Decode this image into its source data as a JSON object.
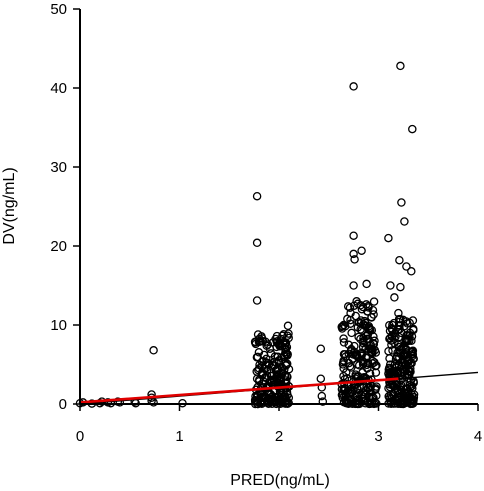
{
  "chart_data": {
    "type": "scatter",
    "title": "",
    "xlabel": "PRED(ng/mL)",
    "ylabel": "DV(ng/mL)",
    "xlim": [
      0,
      4
    ],
    "ylim": [
      0,
      50
    ],
    "x_ticks": [
      "0",
      "1",
      "2",
      "3",
      "4"
    ],
    "y_ticks": [
      "0",
      "10",
      "20",
      "30",
      "40",
      "50"
    ],
    "grid": false,
    "legend": "none",
    "series": [
      {
        "marker": "open-circle",
        "color": "#000000",
        "points": [
          [
            0.0,
            0.1
          ],
          [
            0.03,
            0.2
          ],
          [
            0.12,
            0.05
          ],
          [
            0.2,
            0.1
          ],
          [
            0.22,
            0.3
          ],
          [
            0.28,
            0.2
          ],
          [
            0.31,
            0.1
          ],
          [
            0.38,
            0.3
          ],
          [
            0.4,
            0.2
          ],
          [
            0.55,
            0.3
          ],
          [
            0.56,
            0.1
          ],
          [
            0.72,
            0.4
          ],
          [
            0.72,
            0.8
          ],
          [
            0.72,
            1.2
          ],
          [
            0.74,
            6.8
          ],
          [
            0.74,
            0.2
          ],
          [
            1.03,
            0.1
          ],
          [
            1.78,
            26.3
          ],
          [
            1.78,
            20.4
          ],
          [
            1.78,
            13.1
          ],
          [
            1.76,
            0.5
          ],
          [
            1.77,
            1.8
          ],
          [
            1.78,
            3.2
          ],
          [
            1.8,
            4.5
          ],
          [
            1.82,
            2.0
          ],
          [
            1.79,
            8.8
          ],
          [
            1.83,
            8.3
          ],
          [
            1.85,
            6.2
          ],
          [
            1.87,
            0.8
          ],
          [
            1.88,
            3.6
          ],
          [
            1.9,
            5.0
          ],
          [
            1.92,
            1.2
          ],
          [
            1.94,
            7.8
          ],
          [
            1.96,
            2.5
          ],
          [
            1.97,
            4.2
          ],
          [
            1.98,
            8.6
          ],
          [
            2.0,
            0.6
          ],
          [
            2.02,
            3.0
          ],
          [
            2.05,
            6.0
          ],
          [
            2.07,
            7.0
          ],
          [
            2.08,
            1.5
          ],
          [
            2.09,
            9.9
          ],
          [
            2.1,
            4.4
          ],
          [
            2.1,
            2.2
          ],
          [
            2.42,
            7.0
          ],
          [
            2.42,
            3.2
          ],
          [
            2.43,
            2.1
          ],
          [
            2.43,
            1.0
          ],
          [
            2.44,
            0.3
          ],
          [
            2.75,
            40.2
          ],
          [
            2.75,
            21.3
          ],
          [
            2.75,
            19.0
          ],
          [
            2.76,
            18.3
          ],
          [
            2.83,
            19.4
          ],
          [
            2.88,
            15.2
          ],
          [
            2.75,
            15.0
          ],
          [
            2.78,
            13.0
          ],
          [
            2.65,
            10.0
          ],
          [
            2.65,
            5.5
          ],
          [
            2.63,
            2.5
          ],
          [
            2.67,
            0.5
          ],
          [
            2.7,
            7.5
          ],
          [
            2.72,
            11.5
          ],
          [
            2.73,
            9.0
          ],
          [
            2.77,
            3.5
          ],
          [
            2.79,
            6.0
          ],
          [
            2.8,
            8.5
          ],
          [
            2.82,
            12.5
          ],
          [
            2.84,
            4.0
          ],
          [
            2.85,
            1.2
          ],
          [
            2.86,
            10.5
          ],
          [
            2.87,
            7.0
          ],
          [
            2.89,
            5.2
          ],
          [
            2.9,
            3.0
          ],
          [
            2.91,
            9.5
          ],
          [
            2.92,
            1.8
          ],
          [
            2.93,
            11.0
          ],
          [
            2.94,
            6.5
          ],
          [
            2.95,
            0.8
          ],
          [
            2.96,
            8.0
          ],
          [
            2.97,
            4.8
          ],
          [
            2.98,
            2.2
          ],
          [
            3.22,
            42.8
          ],
          [
            3.34,
            34.8
          ],
          [
            3.23,
            25.5
          ],
          [
            3.26,
            23.1
          ],
          [
            3.1,
            21.0
          ],
          [
            3.21,
            18.2
          ],
          [
            3.28,
            17.4
          ],
          [
            3.33,
            16.8
          ],
          [
            3.12,
            15.0
          ],
          [
            3.22,
            14.8
          ],
          [
            3.16,
            13.5
          ],
          [
            3.14,
            10.0
          ],
          [
            3.13,
            7.5
          ],
          [
            3.12,
            4.0
          ],
          [
            3.15,
            1.2
          ],
          [
            3.17,
            8.5
          ],
          [
            3.18,
            2.5
          ],
          [
            3.19,
            6.0
          ],
          [
            3.2,
            11.5
          ],
          [
            3.21,
            0.5
          ],
          [
            3.23,
            9.0
          ],
          [
            3.24,
            3.5
          ],
          [
            3.25,
            7.2
          ],
          [
            3.27,
            5.0
          ],
          [
            3.29,
            10.2
          ],
          [
            3.3,
            1.5
          ],
          [
            3.31,
            8.0
          ],
          [
            3.32,
            4.5
          ],
          [
            3.33,
            6.5
          ],
          [
            3.34,
            2.0
          ],
          [
            3.35,
            9.5
          ],
          [
            3.35,
            0.3
          ]
        ]
      }
    ],
    "lines": [
      {
        "type": "identity",
        "color": "#000000",
        "x": [
          0,
          4
        ],
        "y": [
          0,
          4
        ]
      },
      {
        "type": "trend",
        "color": "#e00000",
        "x": [
          0,
          3.2
        ],
        "y": [
          0.2,
          3.2
        ]
      }
    ],
    "clusters": [
      {
        "x_min": 1.76,
        "x_max": 2.1,
        "y_min": 0,
        "y_max": 9
      },
      {
        "x_min": 2.63,
        "x_max": 2.98,
        "y_min": 0,
        "y_max": 13
      },
      {
        "x_min": 3.1,
        "x_max": 3.36,
        "y_min": 0,
        "y_max": 11
      }
    ]
  }
}
